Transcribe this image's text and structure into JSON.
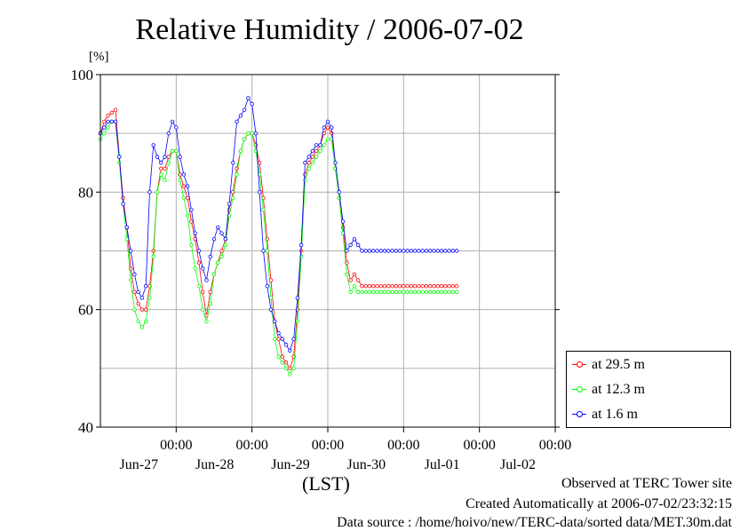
{
  "chart_data": {
    "type": "line",
    "title": "Relative Humidity / 2006-07-02",
    "ylabel": "[%]",
    "xlabel": "(LST)",
    "ylim": [
      40,
      100
    ],
    "yticks": [
      40,
      60,
      80,
      100
    ],
    "xlim": [
      0,
      6
    ],
    "x_unit": "days from Jun-26 12:00",
    "xticks": [
      {
        "x": 1,
        "time": "00:00",
        "date": "Jun-27"
      },
      {
        "x": 2,
        "time": "00:00",
        "date": "Jun-28"
      },
      {
        "x": 3,
        "time": "00:00",
        "date": "Jun-29"
      },
      {
        "x": 4,
        "time": "00:00",
        "date": "Jun-30"
      },
      {
        "x": 5,
        "time": "00:00",
        "date": "Jul-01"
      },
      {
        "x": 6,
        "time": "00:00",
        "date": "Jul-02"
      }
    ],
    "grid": true,
    "legend_position": "bottom-right",
    "series": [
      {
        "name": "at 29.5 m",
        "color": "#ff0000",
        "x": [
          0,
          0.05,
          0.1,
          0.15,
          0.2,
          0.25,
          0.3,
          0.35,
          0.4,
          0.45,
          0.5,
          0.55,
          0.6,
          0.65,
          0.7,
          0.75,
          0.8,
          0.85,
          0.9,
          0.95,
          1,
          1.05,
          1.1,
          1.15,
          1.2,
          1.25,
          1.3,
          1.35,
          1.4,
          1.45,
          1.5,
          1.55,
          1.6,
          1.65,
          1.7,
          1.75,
          1.8,
          1.85,
          1.9,
          1.95,
          2,
          2.05,
          2.1,
          2.15,
          2.2,
          2.25,
          2.3,
          2.35,
          2.4,
          2.45,
          2.5,
          2.55,
          2.6,
          2.65,
          2.7,
          2.75,
          2.8,
          2.85,
          2.9,
          2.95,
          3,
          3.05,
          3.1,
          3.15,
          3.2,
          3.25,
          3.3,
          3.35,
          3.4,
          3.45,
          3.5,
          3.55,
          3.6,
          3.65,
          3.7,
          3.75,
          3.8,
          3.85,
          3.9,
          3.95,
          4,
          4.05,
          4.1,
          4.15,
          4.2,
          4.25,
          4.3,
          4.35,
          4.4,
          4.45,
          4.5,
          4.55,
          4.6,
          4.65,
          4.7
        ],
        "y": [
          90,
          92,
          93,
          93.5,
          94,
          86,
          79,
          74,
          67,
          63,
          61,
          60,
          60,
          64,
          70,
          80,
          84,
          84,
          86,
          87,
          87,
          83,
          81,
          79,
          75,
          72,
          68,
          63,
          59,
          63,
          66,
          68,
          70,
          72,
          77,
          80,
          84,
          87,
          89,
          90,
          90,
          88,
          85,
          79,
          72,
          65,
          58,
          55,
          52,
          51,
          50,
          52,
          60,
          70,
          83,
          85,
          86,
          87,
          88,
          90,
          91,
          90,
          84,
          79,
          74,
          68,
          65,
          66,
          65,
          64,
          64,
          64,
          64,
          64,
          64,
          64,
          64,
          64,
          64,
          64,
          64,
          64,
          64,
          64,
          64,
          64,
          64,
          64,
          64,
          64,
          64,
          64,
          64,
          64,
          64
        ]
      },
      {
        "name": "at 12.3 m",
        "color": "#00ff00",
        "x": [
          0,
          0.05,
          0.1,
          0.15,
          0.2,
          0.25,
          0.3,
          0.35,
          0.4,
          0.45,
          0.5,
          0.55,
          0.6,
          0.65,
          0.7,
          0.75,
          0.8,
          0.85,
          0.9,
          0.95,
          1,
          1.05,
          1.1,
          1.15,
          1.2,
          1.25,
          1.3,
          1.35,
          1.4,
          1.45,
          1.5,
          1.55,
          1.6,
          1.65,
          1.7,
          1.75,
          1.8,
          1.85,
          1.9,
          1.95,
          2,
          2.05,
          2.1,
          2.15,
          2.2,
          2.25,
          2.3,
          2.35,
          2.4,
          2.45,
          2.5,
          2.55,
          2.6,
          2.65,
          2.7,
          2.75,
          2.8,
          2.85,
          2.9,
          2.95,
          3,
          3.05,
          3.1,
          3.15,
          3.2,
          3.25,
          3.3,
          3.35,
          3.4,
          3.45,
          3.5,
          3.55,
          3.6,
          3.65,
          3.7,
          3.75,
          3.8,
          3.85,
          3.9,
          3.95,
          4,
          4.05,
          4.1,
          4.15,
          4.2,
          4.25,
          4.3,
          4.35,
          4.4,
          4.45,
          4.5,
          4.55,
          4.6,
          4.65,
          4.7
        ],
        "y": [
          89,
          90,
          91,
          92,
          92,
          85,
          78,
          72,
          65,
          60,
          58,
          57,
          58,
          62,
          69,
          80,
          83,
          82,
          85,
          87,
          87,
          82,
          79,
          76,
          71,
          67,
          64,
          60,
          58,
          61,
          66,
          68,
          69,
          71,
          76,
          79,
          83,
          87,
          89,
          90,
          90,
          87,
          83,
          77,
          70,
          62,
          55,
          52,
          51,
          50,
          49,
          50,
          58,
          69,
          82,
          84,
          85,
          86,
          87,
          88,
          89,
          89,
          84,
          79,
          73,
          66,
          63,
          64,
          63,
          63,
          63,
          63,
          63,
          63,
          63,
          63,
          63,
          63,
          63,
          63,
          63,
          63,
          63,
          63,
          63,
          63,
          63,
          63,
          63,
          63,
          63,
          63,
          63,
          63,
          63
        ]
      },
      {
        "name": "at 1.6 m",
        "color": "#0000ff",
        "x": [
          0,
          0.05,
          0.1,
          0.15,
          0.2,
          0.25,
          0.3,
          0.35,
          0.4,
          0.45,
          0.5,
          0.55,
          0.6,
          0.65,
          0.7,
          0.75,
          0.8,
          0.85,
          0.9,
          0.95,
          1,
          1.05,
          1.1,
          1.15,
          1.2,
          1.25,
          1.3,
          1.35,
          1.4,
          1.45,
          1.5,
          1.55,
          1.6,
          1.65,
          1.7,
          1.75,
          1.8,
          1.85,
          1.9,
          1.95,
          2,
          2.05,
          2.1,
          2.15,
          2.2,
          2.25,
          2.3,
          2.35,
          2.4,
          2.45,
          2.5,
          2.55,
          2.6,
          2.65,
          2.7,
          2.75,
          2.8,
          2.85,
          2.9,
          2.95,
          3,
          3.05,
          3.1,
          3.15,
          3.2,
          3.25,
          3.3,
          3.35,
          3.4,
          3.45,
          3.5,
          3.55,
          3.6,
          3.65,
          3.7,
          3.75,
          3.8,
          3.85,
          3.9,
          3.95,
          4,
          4.05,
          4.1,
          4.15,
          4.2,
          4.25,
          4.3,
          4.35,
          4.4,
          4.45,
          4.5,
          4.55,
          4.6,
          4.65,
          4.7
        ],
        "y": [
          90,
          91,
          92,
          92,
          92,
          86,
          78,
          74,
          70,
          66,
          63,
          62,
          64,
          80,
          88,
          86,
          85,
          86,
          90,
          92,
          91,
          86,
          83,
          81,
          77,
          73,
          70,
          67,
          65,
          69,
          72,
          74,
          73,
          72,
          78,
          85,
          92,
          93,
          94,
          96,
          95,
          90,
          80,
          70,
          64,
          60,
          58,
          56,
          55,
          54,
          53,
          55,
          62,
          71,
          85,
          86,
          87,
          88,
          88,
          91,
          92,
          91,
          85,
          80,
          75,
          70,
          71,
          72,
          71,
          70,
          70,
          70,
          70,
          70,
          70,
          70,
          70,
          70,
          70,
          70,
          70,
          70,
          70,
          70,
          70,
          70,
          70,
          70,
          70,
          70,
          70,
          70,
          70,
          70,
          70
        ]
      }
    ],
    "legend": [
      "at 29.5 m",
      "at 12.3 m",
      "at 1.6 m"
    ],
    "annotations": [
      "Observed at TERC Tower site",
      "Created Automatically at 2006-07-02/23:32:15",
      "Data source : /home/hoivo/new/TERC-data/sorted data/MET.30m.dat"
    ]
  }
}
